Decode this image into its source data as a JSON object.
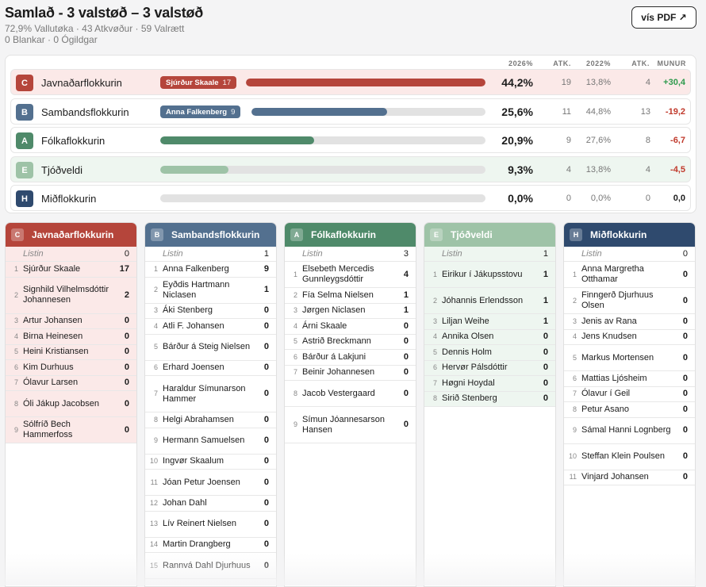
{
  "header": {
    "title": "Samlað - 3 valstøð – 3 valstøð",
    "sub1": "72,9% Vallutøka · 43 Atkvøður · 59 Valrætt",
    "sub2": "0 Blankar · 0 Ógildgar",
    "pdf_label": "vís PDF ↗"
  },
  "summary": {
    "columns": [
      "2026%",
      "ATK.",
      "2022%",
      "ATK.",
      "MUNUR"
    ],
    "rows": [
      {
        "letter": "C",
        "name": "Javnaðarflokkurin",
        "candidate": "Sjúrður Skaale",
        "candidate_votes": "17",
        "bar": 44.2,
        "pct": "44,2%",
        "atk": "19",
        "prev": "13,8%",
        "prev_atk": "4",
        "munur": "+30,4",
        "color": "#b5453b",
        "light": "#fbe9e8",
        "munur_color": "#2e9a4d"
      },
      {
        "letter": "B",
        "name": "Sambandsflokkurin",
        "candidate": "Anna Falkenberg",
        "candidate_votes": "9",
        "bar": 25.6,
        "pct": "25,6%",
        "atk": "11",
        "prev": "44,8%",
        "prev_atk": "13",
        "munur": "-19,2",
        "color": "#53708f",
        "light": "#ffffff",
        "munur_color": "#c0392b"
      },
      {
        "letter": "A",
        "name": "Fólkaflokkurin",
        "candidate": "",
        "candidate_votes": "",
        "bar": 20.9,
        "pct": "20,9%",
        "atk": "9",
        "prev": "27,6%",
        "prev_atk": "8",
        "munur": "-6,7",
        "color": "#4f8a6a",
        "light": "#ffffff",
        "munur_color": "#c0392b"
      },
      {
        "letter": "E",
        "name": "Tjóðveldi",
        "candidate": "",
        "candidate_votes": "",
        "bar": 9.3,
        "pct": "9,3%",
        "atk": "4",
        "prev": "13,8%",
        "prev_atk": "4",
        "munur": "-4,5",
        "color": "#9ec3a7",
        "light": "#eef6f0",
        "munur_color": "#c0392b"
      },
      {
        "letter": "H",
        "name": "Miðflokkurin",
        "candidate": "",
        "candidate_votes": "",
        "bar": 0,
        "pct": "0,0%",
        "atk": "0",
        "prev": "0,0%",
        "prev_atk": "0",
        "munur": "0,0",
        "color": "#2f4a6e",
        "light": "#ffffff",
        "munur_color": "#1c1c1c"
      }
    ]
  },
  "parties": [
    {
      "letter": "C",
      "name": "Javnaðarflokkurin",
      "color": "#b5453b",
      "bg": "#fbe9e8",
      "listin": "0",
      "candidates": [
        [
          "Sjúrður Skaale",
          "17",
          1
        ],
        [
          "Signhild Vilhelmsdóttir Johannesen",
          "2",
          3
        ],
        [
          "Artur Johansen",
          "0",
          1
        ],
        [
          "Birna Heinesen",
          "0",
          1
        ],
        [
          "Heini Kristiansen",
          "0",
          1
        ],
        [
          "Kim Durhuus",
          "0",
          1
        ],
        [
          "Ólavur Larsen",
          "0",
          1
        ],
        [
          "Óli Jákup Jacobsen",
          "0",
          2
        ],
        [
          "Sólfríð Bech Hammerfoss",
          "0",
          2
        ]
      ]
    },
    {
      "letter": "B",
      "name": "Sambandsflokkurin",
      "color": "#53708f",
      "bg": "#ffffff",
      "listin": "1",
      "candidates": [
        [
          "Anna Falkenberg",
          "9",
          1
        ],
        [
          "Eyðdis Hartmann Niclasen",
          "1",
          2
        ],
        [
          "Áki Stenberg",
          "0",
          1
        ],
        [
          "Atli F. Johansen",
          "0",
          1
        ],
        [
          "Bárður á Steig Nielsen",
          "0",
          2
        ],
        [
          "Erhard Joensen",
          "0",
          1
        ],
        [
          "Haraldur Símunarson Hammer",
          "0",
          3
        ],
        [
          "Helgi Abrahamsen",
          "0",
          1
        ],
        [
          "Hermann Samuelsen",
          "0",
          2
        ],
        [
          "Ingvør Skaalum",
          "0",
          1
        ],
        [
          "Jóan Petur Joensen",
          "0",
          2
        ],
        [
          "Johan Dahl",
          "0",
          1
        ],
        [
          "Lív Reinert Nielsen",
          "0",
          2
        ],
        [
          "Martin Drangberg",
          "0",
          1
        ],
        [
          "Rannvá Dahl Djurhuus",
          "0",
          2
        ]
      ]
    },
    {
      "letter": "A",
      "name": "Fólkaflokkurin",
      "color": "#4f8a6a",
      "bg": "#ffffff",
      "listin": "3",
      "candidates": [
        [
          "Elsebeth Mercedis Gunnleygsdóttir",
          "4",
          2
        ],
        [
          "Fía Selma Nielsen",
          "1",
          1
        ],
        [
          "Jørgen Niclasen",
          "1",
          1
        ],
        [
          "Árni Skaale",
          "0",
          1
        ],
        [
          "Astrið Breckmann",
          "0",
          1
        ],
        [
          "Bárður á Lakjuni",
          "0",
          1
        ],
        [
          "Beinir Johannesen",
          "0",
          1
        ],
        [
          "Jacob Vestergaard",
          "0",
          2
        ],
        [
          "Símun Jóannesarson Hansen",
          "0",
          3
        ]
      ]
    },
    {
      "letter": "E",
      "name": "Tjóðveldi",
      "color": "#9ec3a7",
      "bg": "#eef6f0",
      "listin": "1",
      "candidates": [
        [
          "Eirikur í Jákupsstovu",
          "1",
          2
        ],
        [
          "Jóhannis Erlendsson",
          "1",
          2
        ],
        [
          "Liljan Weihe",
          "1",
          1
        ],
        [
          "Annika Olsen",
          "0",
          1
        ],
        [
          "Dennis Holm",
          "0",
          1
        ],
        [
          "Hervør Pálsdóttir",
          "0",
          1
        ],
        [
          "Høgni Hoydal",
          "0",
          1
        ],
        [
          "Sirið Stenberg",
          "0",
          1
        ]
      ]
    },
    {
      "letter": "H",
      "name": "Miðflokkurin",
      "color": "#2f4a6e",
      "bg": "#ffffff",
      "listin": "0",
      "candidates": [
        [
          "Anna Margretha Otthamar",
          "0",
          2
        ],
        [
          "Finngerð Djurhuus Olsen",
          "0",
          2
        ],
        [
          "Jenis av Rana",
          "0",
          1
        ],
        [
          "Jens Knudsen",
          "0",
          1
        ],
        [
          "Markus Mortensen",
          "0",
          2
        ],
        [
          "Mattias Ljósheim",
          "0",
          1
        ],
        [
          "Ólavur í Geil",
          "0",
          1
        ],
        [
          "Petur Asano",
          "0",
          1
        ],
        [
          "Sámal Hanni Lognberg",
          "0",
          2
        ],
        [
          "Steffan Klein Poulsen",
          "0",
          2
        ],
        [
          "Vinjard Johansen",
          "0",
          1
        ]
      ]
    }
  ],
  "listin_label": "Listin"
}
